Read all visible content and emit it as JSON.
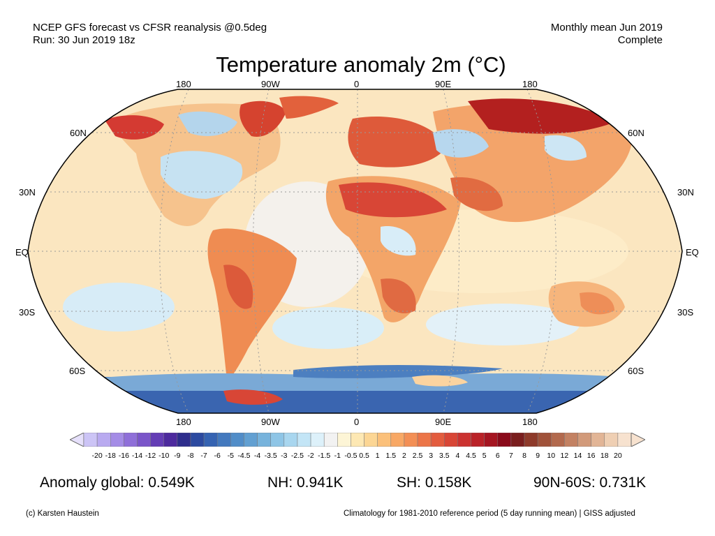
{
  "header": {
    "left_line1": "NCEP GFS forecast vs CFSR reanalysis @0.5deg",
    "left_line2": "Run: 30 Jun 2019 18z",
    "right_line1": "Monthly mean Jun 2019",
    "right_line2": "Complete"
  },
  "title": "Temperature anomaly 2m (°C)",
  "map": {
    "projection": "Robinson",
    "lon_labels": [
      "180",
      "90W",
      "0",
      "90E",
      "180"
    ],
    "lat_labels": [
      "60N",
      "30N",
      "EQ",
      "30S",
      "60S"
    ],
    "anomaly_regions": [
      {
        "region": "Arctic Siberia",
        "sign": "warm",
        "magnitude": "strong"
      },
      {
        "region": "Alaska / NW Canada",
        "sign": "warm",
        "magnitude": "strong"
      },
      {
        "region": "Greenland",
        "sign": "warm",
        "magnitude": "strong"
      },
      {
        "region": "Europe",
        "sign": "warm",
        "magnitude": "moderate"
      },
      {
        "region": "Sahara / Middle East",
        "sign": "warm",
        "magnitude": "moderate"
      },
      {
        "region": "Central North America",
        "sign": "cold",
        "magnitude": "weak"
      },
      {
        "region": "Western Siberia",
        "sign": "cold",
        "magnitude": "weak"
      },
      {
        "region": "Antarctica",
        "sign": "cold",
        "magnitude": "strong"
      },
      {
        "region": "Australia",
        "sign": "warm",
        "magnitude": "weak"
      },
      {
        "region": "South America",
        "sign": "warm",
        "magnitude": "moderate"
      }
    ]
  },
  "colorbar": {
    "ticks": [
      "-20",
      "-18",
      "-16",
      "-14",
      "-12",
      "-10",
      "-9",
      "-8",
      "-7",
      "-6",
      "-5",
      "-4.5",
      "-4",
      "-3.5",
      "-3",
      "-2.5",
      "-2",
      "-1.5",
      "-1",
      "-0.5",
      "0.5",
      "1",
      "1.5",
      "2",
      "2.5",
      "3",
      "3.5",
      "4",
      "4.5",
      "5",
      "6",
      "7",
      "8",
      "9",
      "10",
      "12",
      "14",
      "16",
      "18",
      "20"
    ],
    "colors": [
      "#ccc4f6",
      "#b9aaf0",
      "#a48ce6",
      "#8f6fd9",
      "#7a55c9",
      "#643db5",
      "#4d2a9e",
      "#2e2d8c",
      "#2c4aa0",
      "#3563b2",
      "#4379be",
      "#518dc8",
      "#62a0d2",
      "#77b3dc",
      "#8ec5e6",
      "#a8d6ef",
      "#c3e5f6",
      "#ddf1fa",
      "#f2f2f2",
      "#fdf5d6",
      "#fde8b3",
      "#fcd694",
      "#fbc07a",
      "#f8a865",
      "#f38f55",
      "#ec7548",
      "#e35c3e",
      "#d84636",
      "#cb3230",
      "#ba2228",
      "#a51521",
      "#8a0a1a",
      "#7a1e1e",
      "#8e3a2a",
      "#a0523a",
      "#b2694d",
      "#c38162",
      "#d29a7a",
      "#e2b596",
      "#efcfb3",
      "#f7e2cf"
    ],
    "below_color": "#e6e0fb",
    "above_color": "#f7e2cf"
  },
  "stats": {
    "global": "Anomaly global: 0.549K",
    "nh": "NH: 0.941K",
    "sh": "SH: 0.158K",
    "arctic": "90N-60S: 0.731K"
  },
  "footer": {
    "left": "(c) Karsten Haustein",
    "right": "Climatology for 1981-2010 reference period (5 day running mean) | GISS adjusted"
  }
}
